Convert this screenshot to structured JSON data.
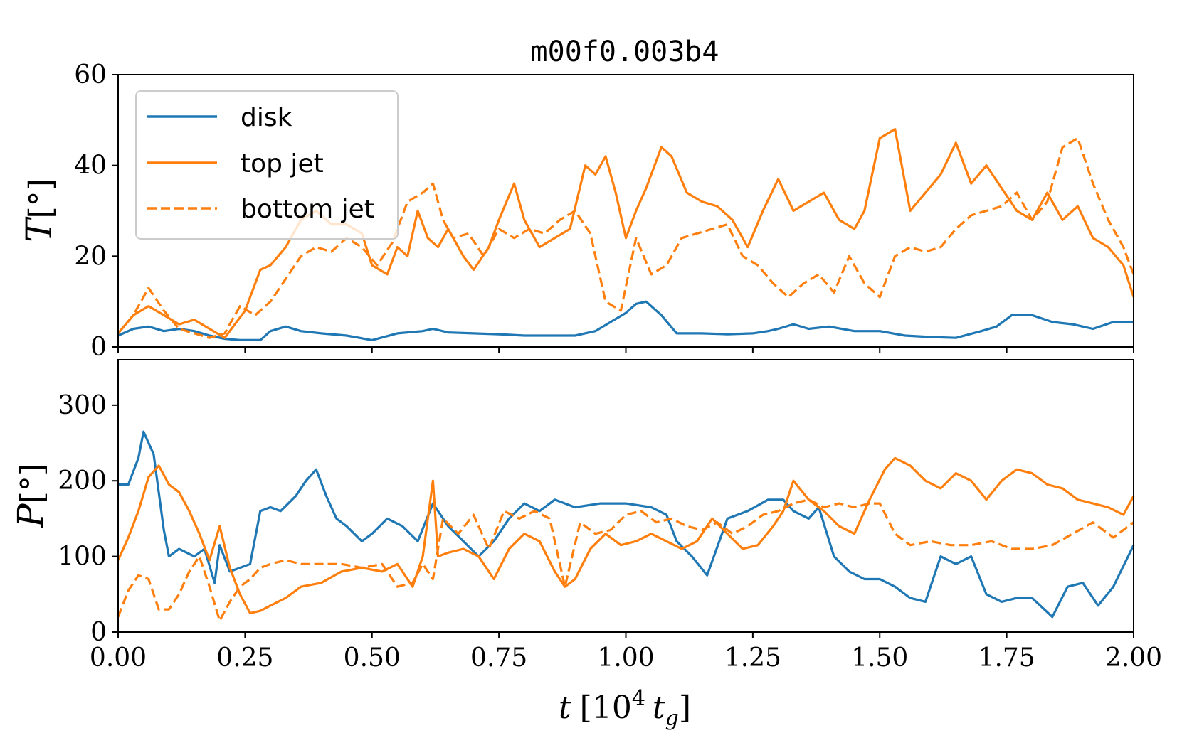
{
  "chart_data": [
    {
      "type": "line",
      "panel": "top",
      "title": "m00f0.003b4",
      "ylabel": "T[°]",
      "ylabel_symbol": "T",
      "ylabel_unit": "[°]",
      "xlabel": "",
      "xlim": [
        0,
        2.0
      ],
      "ylim": [
        0,
        60
      ],
      "yticks": [
        0,
        20,
        40,
        60
      ],
      "ytick_labels": [
        "0",
        "20",
        "40",
        "60"
      ],
      "legend": {
        "placement": "top-left",
        "entries": [
          {
            "label": "disk",
            "color": "#1f77b4",
            "dash": "solid"
          },
          {
            "label": "top jet",
            "color": "#ff7f0e",
            "dash": "solid"
          },
          {
            "label": "bottom jet",
            "color": "#ff7f0e",
            "dash": "dashed"
          }
        ]
      },
      "series": [
        {
          "name": "disk",
          "color": "#1f77b4",
          "dash": "solid",
          "x": [
            0.0,
            0.03,
            0.06,
            0.09,
            0.12,
            0.15,
            0.18,
            0.21,
            0.24,
            0.28,
            0.3,
            0.33,
            0.36,
            0.4,
            0.45,
            0.5,
            0.55,
            0.6,
            0.62,
            0.65,
            0.7,
            0.75,
            0.8,
            0.85,
            0.9,
            0.94,
            0.97,
            1.0,
            1.02,
            1.04,
            1.07,
            1.1,
            1.15,
            1.2,
            1.25,
            1.28,
            1.3,
            1.33,
            1.36,
            1.4,
            1.45,
            1.5,
            1.55,
            1.6,
            1.65,
            1.7,
            1.73,
            1.76,
            1.8,
            1.84,
            1.88,
            1.92,
            1.96,
            2.0
          ],
          "values": [
            2.5,
            4.0,
            4.5,
            3.5,
            4.0,
            3.5,
            2.5,
            1.8,
            1.5,
            1.5,
            3.5,
            4.5,
            3.5,
            3.0,
            2.5,
            1.5,
            3.0,
            3.5,
            4.0,
            3.2,
            3.0,
            2.8,
            2.5,
            2.5,
            2.5,
            3.5,
            5.5,
            7.5,
            9.5,
            10.0,
            7.0,
            3.0,
            3.0,
            2.8,
            3.0,
            3.5,
            4.0,
            5.0,
            4.0,
            4.5,
            3.5,
            3.5,
            2.5,
            2.2,
            2.0,
            3.5,
            4.5,
            7.0,
            7.0,
            5.5,
            5.0,
            4.0,
            5.5,
            5.5
          ]
        },
        {
          "name": "top jet",
          "color": "#ff7f0e",
          "dash": "solid",
          "x": [
            0.0,
            0.03,
            0.06,
            0.09,
            0.12,
            0.15,
            0.18,
            0.21,
            0.25,
            0.28,
            0.3,
            0.33,
            0.36,
            0.39,
            0.42,
            0.45,
            0.48,
            0.5,
            0.53,
            0.55,
            0.57,
            0.59,
            0.61,
            0.63,
            0.65,
            0.68,
            0.7,
            0.73,
            0.75,
            0.78,
            0.8,
            0.83,
            0.86,
            0.89,
            0.92,
            0.94,
            0.96,
            0.98,
            1.0,
            1.02,
            1.04,
            1.07,
            1.09,
            1.12,
            1.15,
            1.18,
            1.21,
            1.24,
            1.27,
            1.3,
            1.33,
            1.36,
            1.39,
            1.42,
            1.45,
            1.47,
            1.5,
            1.53,
            1.56,
            1.59,
            1.62,
            1.65,
            1.68,
            1.71,
            1.74,
            1.77,
            1.8,
            1.83,
            1.86,
            1.89,
            1.92,
            1.95,
            1.98,
            2.0
          ],
          "values": [
            3.0,
            7.0,
            9.0,
            7.0,
            5.0,
            6.0,
            4.0,
            2.0,
            8.0,
            17.0,
            18.0,
            22.0,
            28.0,
            30.0,
            27.0,
            27.0,
            25.0,
            18.0,
            16.0,
            22.0,
            20.0,
            30.0,
            24.0,
            22.0,
            26.0,
            20.0,
            17.0,
            22.0,
            28.0,
            36.0,
            28.0,
            22.0,
            24.0,
            26.0,
            40.0,
            38.0,
            42.0,
            34.0,
            24.0,
            30.0,
            35.0,
            44.0,
            42.0,
            34.0,
            32.0,
            31.0,
            28.0,
            22.0,
            30.0,
            37.0,
            30.0,
            32.0,
            34.0,
            28.0,
            26.0,
            30.0,
            46.0,
            48.0,
            30.0,
            34.0,
            38.0,
            45.0,
            36.0,
            40.0,
            35.0,
            30.0,
            28.0,
            34.0,
            28.0,
            31.0,
            24.0,
            22.0,
            18.0,
            11.0
          ]
        },
        {
          "name": "bottom jet",
          "color": "#ff7f0e",
          "dash": "dashed",
          "x": [
            0.0,
            0.03,
            0.06,
            0.09,
            0.12,
            0.15,
            0.18,
            0.21,
            0.24,
            0.27,
            0.3,
            0.33,
            0.36,
            0.39,
            0.42,
            0.45,
            0.48,
            0.51,
            0.54,
            0.57,
            0.6,
            0.62,
            0.64,
            0.66,
            0.69,
            0.72,
            0.75,
            0.78,
            0.81,
            0.84,
            0.87,
            0.9,
            0.93,
            0.96,
            0.99,
            1.02,
            1.05,
            1.08,
            1.11,
            1.14,
            1.17,
            1.2,
            1.23,
            1.26,
            1.29,
            1.32,
            1.35,
            1.38,
            1.41,
            1.44,
            1.47,
            1.5,
            1.53,
            1.56,
            1.59,
            1.62,
            1.65,
            1.68,
            1.71,
            1.74,
            1.77,
            1.8,
            1.83,
            1.86,
            1.89,
            1.92,
            1.95,
            1.98,
            2.0
          ],
          "values": [
            3.0,
            7.0,
            13.0,
            8.0,
            4.0,
            3.0,
            2.0,
            3.0,
            9.0,
            7.0,
            10.0,
            15.0,
            20.0,
            22.0,
            21.0,
            24.0,
            22.0,
            18.0,
            23.0,
            32.0,
            34.0,
            36.0,
            28.0,
            24.0,
            25.0,
            20.0,
            26.0,
            24.0,
            26.0,
            25.0,
            28.0,
            30.0,
            25.0,
            10.0,
            8.0,
            24.0,
            16.0,
            18.0,
            24.0,
            25.0,
            26.0,
            27.0,
            20.0,
            18.0,
            14.0,
            11.0,
            14.0,
            16.0,
            12.0,
            20.0,
            14.0,
            11.0,
            20.0,
            22.0,
            21.0,
            22.0,
            26.0,
            29.0,
            30.0,
            31.0,
            34.0,
            28.0,
            32.0,
            44.0,
            46.0,
            36.0,
            28.0,
            22.0,
            16.0
          ]
        }
      ]
    },
    {
      "type": "line",
      "panel": "bottom",
      "title": "",
      "ylabel": "P[°]",
      "ylabel_symbol": "P",
      "ylabel_unit": "[°]",
      "xlabel": "t [10^4 t_g]",
      "xlabel_t": "t",
      "xlabel_open": "[10",
      "xlabel_exp": "4",
      "xlabel_tg": "t",
      "xlabel_sub": "g",
      "xlabel_close": "]",
      "xlim": [
        0,
        2.0
      ],
      "ylim": [
        0,
        360
      ],
      "yticks": [
        0,
        100,
        200,
        300
      ],
      "ytick_labels": [
        "0",
        "100",
        "200",
        "300"
      ],
      "xticks": [
        0,
        0.25,
        0.5,
        0.75,
        1.0,
        1.25,
        1.5,
        1.75,
        2.0
      ],
      "xtick_labels": [
        "0.00",
        "0.25",
        "0.50",
        "0.75",
        "1.00",
        "1.25",
        "1.50",
        "1.75",
        "2.00"
      ],
      "series": [
        {
          "name": "disk",
          "color": "#1f77b4",
          "dash": "solid",
          "x": [
            0.0,
            0.02,
            0.04,
            0.05,
            0.07,
            0.09,
            0.1,
            0.12,
            0.15,
            0.17,
            0.19,
            0.2,
            0.22,
            0.24,
            0.26,
            0.28,
            0.3,
            0.32,
            0.35,
            0.37,
            0.39,
            0.41,
            0.43,
            0.45,
            0.48,
            0.5,
            0.53,
            0.56,
            0.59,
            0.62,
            0.65,
            0.68,
            0.71,
            0.74,
            0.77,
            0.8,
            0.83,
            0.86,
            0.9,
            0.95,
            1.0,
            1.05,
            1.08,
            1.1,
            1.13,
            1.16,
            1.2,
            1.24,
            1.28,
            1.31,
            1.33,
            1.36,
            1.38,
            1.41,
            1.44,
            1.47,
            1.5,
            1.53,
            1.56,
            1.59,
            1.62,
            1.65,
            1.68,
            1.71,
            1.74,
            1.77,
            1.8,
            1.84,
            1.87,
            1.9,
            1.93,
            1.96,
            2.0
          ],
          "values": [
            195,
            195,
            230,
            265,
            235,
            135,
            100,
            110,
            100,
            110,
            65,
            115,
            80,
            85,
            90,
            160,
            165,
            160,
            180,
            200,
            215,
            180,
            150,
            140,
            120,
            130,
            150,
            140,
            120,
            170,
            140,
            120,
            100,
            120,
            150,
            170,
            160,
            175,
            165,
            170,
            170,
            165,
            155,
            120,
            100,
            75,
            150,
            160,
            175,
            175,
            160,
            150,
            165,
            100,
            80,
            70,
            70,
            60,
            45,
            40,
            100,
            90,
            100,
            50,
            40,
            45,
            45,
            20,
            60,
            65,
            35,
            60,
            115
          ]
        },
        {
          "name": "top jet",
          "color": "#ff7f0e",
          "dash": "solid",
          "x": [
            0.0,
            0.02,
            0.04,
            0.06,
            0.08,
            0.1,
            0.12,
            0.14,
            0.16,
            0.18,
            0.2,
            0.22,
            0.24,
            0.26,
            0.28,
            0.3,
            0.33,
            0.36,
            0.4,
            0.44,
            0.48,
            0.52,
            0.55,
            0.58,
            0.6,
            0.62,
            0.63,
            0.65,
            0.68,
            0.71,
            0.74,
            0.77,
            0.8,
            0.83,
            0.86,
            0.88,
            0.9,
            0.93,
            0.96,
            0.99,
            1.02,
            1.05,
            1.08,
            1.11,
            1.14,
            1.17,
            1.2,
            1.23,
            1.26,
            1.29,
            1.31,
            1.33,
            1.36,
            1.39,
            1.42,
            1.45,
            1.48,
            1.51,
            1.53,
            1.56,
            1.59,
            1.62,
            1.65,
            1.68,
            1.71,
            1.74,
            1.77,
            1.8,
            1.83,
            1.86,
            1.89,
            1.92,
            1.95,
            1.98,
            2.0
          ],
          "values": [
            95,
            125,
            160,
            205,
            220,
            195,
            185,
            160,
            130,
            95,
            140,
            85,
            50,
            25,
            28,
            35,
            45,
            60,
            65,
            80,
            85,
            80,
            90,
            60,
            100,
            200,
            100,
            105,
            110,
            100,
            70,
            110,
            130,
            120,
            80,
            60,
            70,
            110,
            130,
            115,
            120,
            130,
            120,
            110,
            120,
            150,
            130,
            110,
            115,
            140,
            160,
            200,
            175,
            160,
            140,
            130,
            175,
            215,
            230,
            220,
            200,
            190,
            210,
            200,
            175,
            200,
            215,
            210,
            195,
            190,
            175,
            170,
            165,
            155,
            180
          ]
        },
        {
          "name": "bottom jet",
          "color": "#ff7f0e",
          "dash": "dashed",
          "x": [
            0.0,
            0.02,
            0.04,
            0.06,
            0.08,
            0.1,
            0.12,
            0.14,
            0.16,
            0.18,
            0.2,
            0.22,
            0.24,
            0.26,
            0.28,
            0.3,
            0.33,
            0.36,
            0.4,
            0.44,
            0.48,
            0.52,
            0.55,
            0.58,
            0.6,
            0.62,
            0.64,
            0.67,
            0.7,
            0.73,
            0.76,
            0.79,
            0.82,
            0.85,
            0.88,
            0.91,
            0.94,
            0.97,
            1.0,
            1.03,
            1.06,
            1.09,
            1.12,
            1.15,
            1.18,
            1.21,
            1.24,
            1.27,
            1.3,
            1.33,
            1.36,
            1.39,
            1.42,
            1.45,
            1.48,
            1.5,
            1.53,
            1.56,
            1.6,
            1.64,
            1.68,
            1.72,
            1.76,
            1.8,
            1.84,
            1.88,
            1.92,
            1.96,
            2.0
          ],
          "values": [
            20,
            55,
            75,
            70,
            30,
            30,
            50,
            80,
            100,
            60,
            15,
            40,
            60,
            70,
            85,
            90,
            95,
            90,
            90,
            90,
            85,
            90,
            60,
            65,
            90,
            70,
            150,
            130,
            155,
            110,
            160,
            150,
            160,
            150,
            60,
            145,
            130,
            135,
            155,
            160,
            145,
            150,
            140,
            135,
            145,
            130,
            140,
            155,
            160,
            170,
            175,
            165,
            170,
            165,
            170,
            170,
            130,
            115,
            120,
            115,
            115,
            120,
            110,
            110,
            115,
            130,
            145,
            125,
            145
          ]
        }
      ]
    }
  ]
}
